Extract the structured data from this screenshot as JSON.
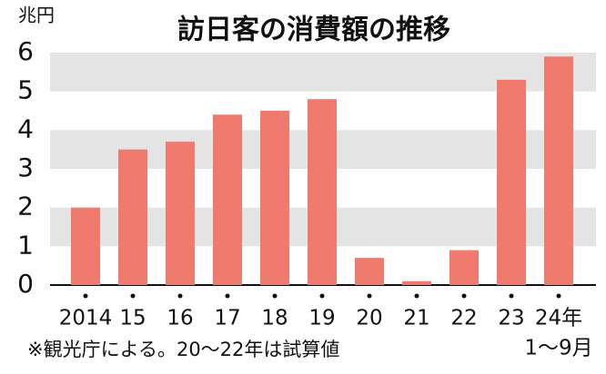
{
  "chart_data": {
    "type": "bar",
    "title": "訪日客の消費額の推移",
    "y_unit": "兆円",
    "categories": [
      "2014",
      "15",
      "16",
      "17",
      "18",
      "19",
      "20",
      "21",
      "22",
      "23",
      "24年"
    ],
    "period_note": "1～9月",
    "values": [
      2.0,
      3.5,
      3.7,
      4.4,
      4.5,
      4.8,
      0.7,
      0.1,
      0.9,
      5.3,
      5.9
    ],
    "color": "#f07a6e",
    "band_color": "#e4e4e4",
    "ylim": [
      0,
      6
    ],
    "yticks": [
      0,
      1,
      2,
      3,
      4,
      5,
      6
    ],
    "shaded_bands": true,
    "note": "※観光庁による。20～22年は試算値"
  }
}
